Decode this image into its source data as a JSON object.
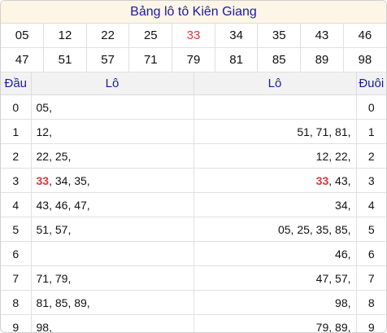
{
  "title": "Bảng lô tô Kiên Giang",
  "numbers_row1": [
    "05",
    "12",
    "22",
    "25",
    "33",
    "34",
    "35",
    "43",
    "46"
  ],
  "numbers_row2": [
    "47",
    "51",
    "57",
    "71",
    "79",
    "81",
    "85",
    "89",
    "98"
  ],
  "highlight_number": "33",
  "highlight_color": "#e0343f",
  "title_color": "#1a1aa8",
  "headers": {
    "dau": "Đầu",
    "lo_left": "Lô",
    "lo_right": "Lô",
    "duoi": "Đuôi"
  },
  "rows": [
    {
      "dau": "0",
      "left": [
        "05"
      ],
      "right": [],
      "duoi": "0"
    },
    {
      "dau": "1",
      "left": [
        "12"
      ],
      "right": [
        "51",
        "71",
        "81"
      ],
      "duoi": "1"
    },
    {
      "dau": "2",
      "left": [
        "22",
        "25"
      ],
      "right": [
        "12",
        "22"
      ],
      "duoi": "2"
    },
    {
      "dau": "3",
      "left": [
        "33",
        "34",
        "35"
      ],
      "right": [
        "33",
        "43"
      ],
      "duoi": "3"
    },
    {
      "dau": "4",
      "left": [
        "43",
        "46",
        "47"
      ],
      "right": [
        "34"
      ],
      "duoi": "4"
    },
    {
      "dau": "5",
      "left": [
        "51",
        "57"
      ],
      "right": [
        "05",
        "25",
        "35",
        "85"
      ],
      "duoi": "5"
    },
    {
      "dau": "6",
      "left": [],
      "right": [
        "46"
      ],
      "duoi": "6"
    },
    {
      "dau": "7",
      "left": [
        "71",
        "79"
      ],
      "right": [
        "47",
        "57"
      ],
      "duoi": "7"
    },
    {
      "dau": "8",
      "left": [
        "81",
        "85",
        "89"
      ],
      "right": [
        "98"
      ],
      "duoi": "8"
    },
    {
      "dau": "9",
      "left": [
        "98"
      ],
      "right": [
        "79",
        "89"
      ],
      "duoi": "9"
    }
  ]
}
